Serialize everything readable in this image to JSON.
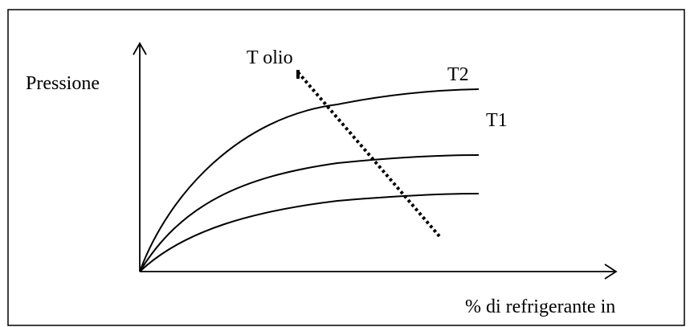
{
  "labels": {
    "y_axis": "Pressione",
    "x_axis": "% di refrigerante in",
    "oil_temperature": "T olio",
    "curve_t2": "T2",
    "curve_t1": "T1"
  },
  "colors": {
    "stroke": "#000000",
    "frame": "#000000",
    "background": "#ffffff"
  }
}
